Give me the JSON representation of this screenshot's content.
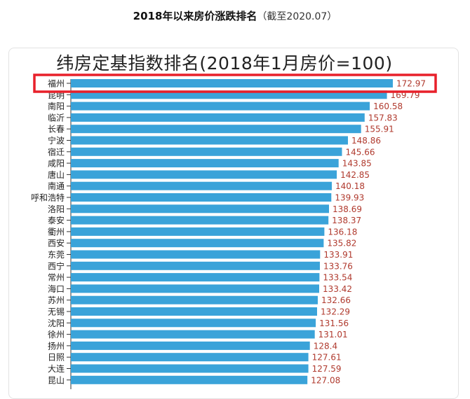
{
  "caption": {
    "main": "2018年以来房价涨跌排名",
    "sub": "（截至2020.07）"
  },
  "chart_data": {
    "type": "bar",
    "orientation": "horizontal",
    "title": "纬房定基指数排名(2018年1月房价=100)",
    "categories": [
      "福州",
      "昆明",
      "南阳",
      "临沂",
      "长春",
      "宁波",
      "宿迁",
      "咸阳",
      "唐山",
      "南通",
      "呼和浩特",
      "洛阳",
      "泰安",
      "衢州",
      "西安",
      "东莞",
      "西宁",
      "常州",
      "海口",
      "苏州",
      "无锡",
      "沈阳",
      "徐州",
      "扬州",
      "日照",
      "大连",
      "昆山"
    ],
    "values": [
      172.97,
      169.79,
      160.58,
      157.83,
      155.91,
      148.86,
      145.66,
      143.85,
      142.85,
      140.18,
      139.93,
      138.69,
      138.37,
      136.18,
      135.82,
      133.91,
      133.76,
      133.54,
      133.42,
      132.66,
      132.29,
      131.56,
      131.01,
      128.4,
      127.61,
      127.59,
      127.08
    ],
    "value_labels": [
      "172.97",
      "169.79",
      "160.58",
      "157.83",
      "155.91",
      "148.86",
      "145.66",
      "143.85",
      "142.85",
      "140.18",
      "139.93",
      "138.69",
      "138.37",
      "136.18",
      "135.82",
      "133.91",
      "133.76",
      "133.54",
      "133.42",
      "132.66",
      "132.29",
      "131.56",
      "131.01",
      "128.4",
      "127.61",
      "127.59",
      "127.08"
    ],
    "highlight_index": 0,
    "xlabel": "",
    "ylabel": "",
    "grid": false,
    "colors": {
      "bar": "#3aa3d9",
      "value_label": "#b03a2e",
      "highlight_box": "#e8202a"
    }
  }
}
